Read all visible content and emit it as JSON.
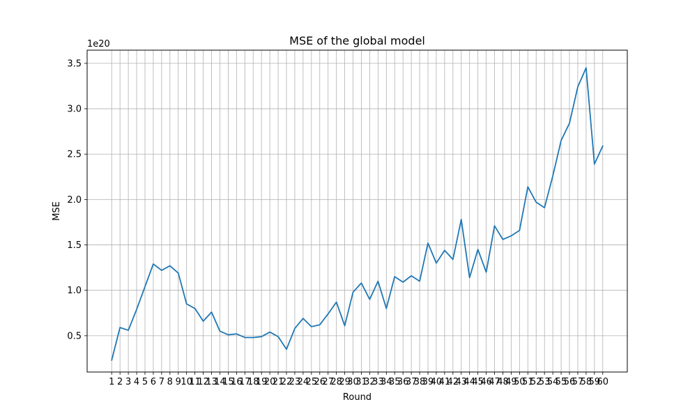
{
  "chart_data": {
    "type": "line",
    "title": "MSE of the global model",
    "xlabel": "Round",
    "ylabel": "MSE",
    "y_offset_label": "1e20",
    "grid": true,
    "line_color": "#1f77b4",
    "x": [
      1,
      2,
      3,
      4,
      5,
      6,
      7,
      8,
      9,
      10,
      11,
      12,
      13,
      14,
      15,
      16,
      17,
      18,
      19,
      20,
      21,
      22,
      23,
      24,
      25,
      26,
      27,
      28,
      29,
      30,
      31,
      32,
      33,
      34,
      35,
      36,
      37,
      38,
      39,
      40,
      41,
      42,
      43,
      44,
      45,
      46,
      47,
      48,
      49,
      50,
      51,
      52,
      53,
      54,
      55,
      56,
      57,
      58,
      59,
      60
    ],
    "x_tick_labels": [
      "1",
      "2",
      "3",
      "4",
      "5",
      "6",
      "7",
      "8",
      "9",
      "10",
      "11",
      "12",
      "13",
      "14",
      "15",
      "16",
      "17",
      "18",
      "19",
      "20",
      "21",
      "22",
      "23",
      "24",
      "25",
      "26",
      "27",
      "28",
      "29",
      "30",
      "31",
      "32",
      "33",
      "34",
      "35",
      "36",
      "37",
      "38",
      "39",
      "40",
      "41",
      "42",
      "43",
      "44",
      "45",
      "46",
      "47",
      "48",
      "49",
      "50",
      "51",
      "52",
      "53",
      "54",
      "55",
      "56",
      "57",
      "58",
      "59",
      "60"
    ],
    "y_ticks": [
      0.5,
      1.0,
      1.5,
      2.0,
      2.5,
      3.0,
      3.5
    ],
    "y_tick_labels": [
      "0.5",
      "1.0",
      "1.5",
      "2.0",
      "2.5",
      "3.0",
      "3.5"
    ],
    "xlim": [
      -1.95,
      62.95
    ],
    "ylim": [
      0.1,
      3.645
    ],
    "series": [
      {
        "values": [
          0.23,
          0.59,
          0.56,
          0.79,
          1.04,
          1.29,
          1.22,
          1.27,
          1.19,
          0.85,
          0.8,
          0.66,
          0.76,
          0.55,
          0.51,
          0.52,
          0.48,
          0.48,
          0.49,
          0.54,
          0.49,
          0.35,
          0.58,
          0.69,
          0.6,
          0.62,
          0.74,
          0.87,
          0.61,
          0.98,
          1.08,
          0.9,
          1.1,
          0.8,
          1.15,
          1.09,
          1.16,
          1.1,
          1.52,
          1.3,
          1.44,
          1.34,
          1.78,
          1.14,
          1.45,
          1.2,
          1.71,
          1.56,
          1.6,
          1.66,
          2.14,
          1.97,
          1.91,
          2.26,
          2.65,
          2.84,
          3.24,
          3.45,
          2.39,
          2.59
        ]
      }
    ]
  }
}
